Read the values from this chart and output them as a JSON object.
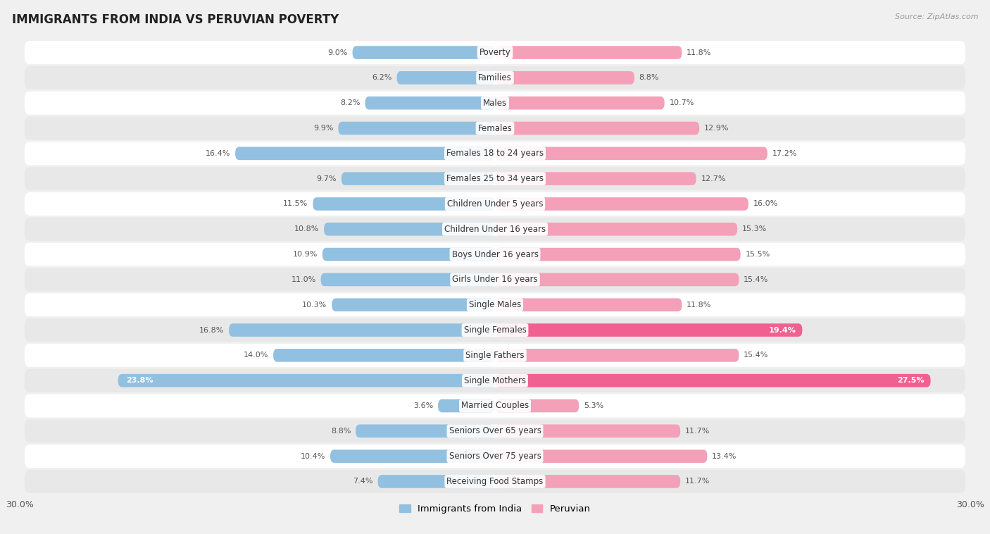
{
  "title": "IMMIGRANTS FROM INDIA VS PERUVIAN POVERTY",
  "source": "Source: ZipAtlas.com",
  "categories": [
    "Poverty",
    "Families",
    "Males",
    "Females",
    "Females 18 to 24 years",
    "Females 25 to 34 years",
    "Children Under 5 years",
    "Children Under 16 years",
    "Boys Under 16 years",
    "Girls Under 16 years",
    "Single Males",
    "Single Females",
    "Single Fathers",
    "Single Mothers",
    "Married Couples",
    "Seniors Over 65 years",
    "Seniors Over 75 years",
    "Receiving Food Stamps"
  ],
  "india_values": [
    9.0,
    6.2,
    8.2,
    9.9,
    16.4,
    9.7,
    11.5,
    10.8,
    10.9,
    11.0,
    10.3,
    16.8,
    14.0,
    23.8,
    3.6,
    8.8,
    10.4,
    7.4
  ],
  "peru_values": [
    11.8,
    8.8,
    10.7,
    12.9,
    17.2,
    12.7,
    16.0,
    15.3,
    15.5,
    15.4,
    11.8,
    19.4,
    15.4,
    27.5,
    5.3,
    11.7,
    13.4,
    11.7
  ],
  "india_color": "#92C0E0",
  "peru_color": "#F4A0B8",
  "peru_color_bright": "#F06090",
  "bar_height": 0.52,
  "x_max": 30.0,
  "background_color": "#f0f0f0",
  "row_color_odd": "#ffffff",
  "row_color_even": "#e8e8e8",
  "legend_india": "Immigrants from India",
  "legend_peru": "Peruvian",
  "label_fontsize": 8.0,
  "cat_fontsize": 8.5
}
